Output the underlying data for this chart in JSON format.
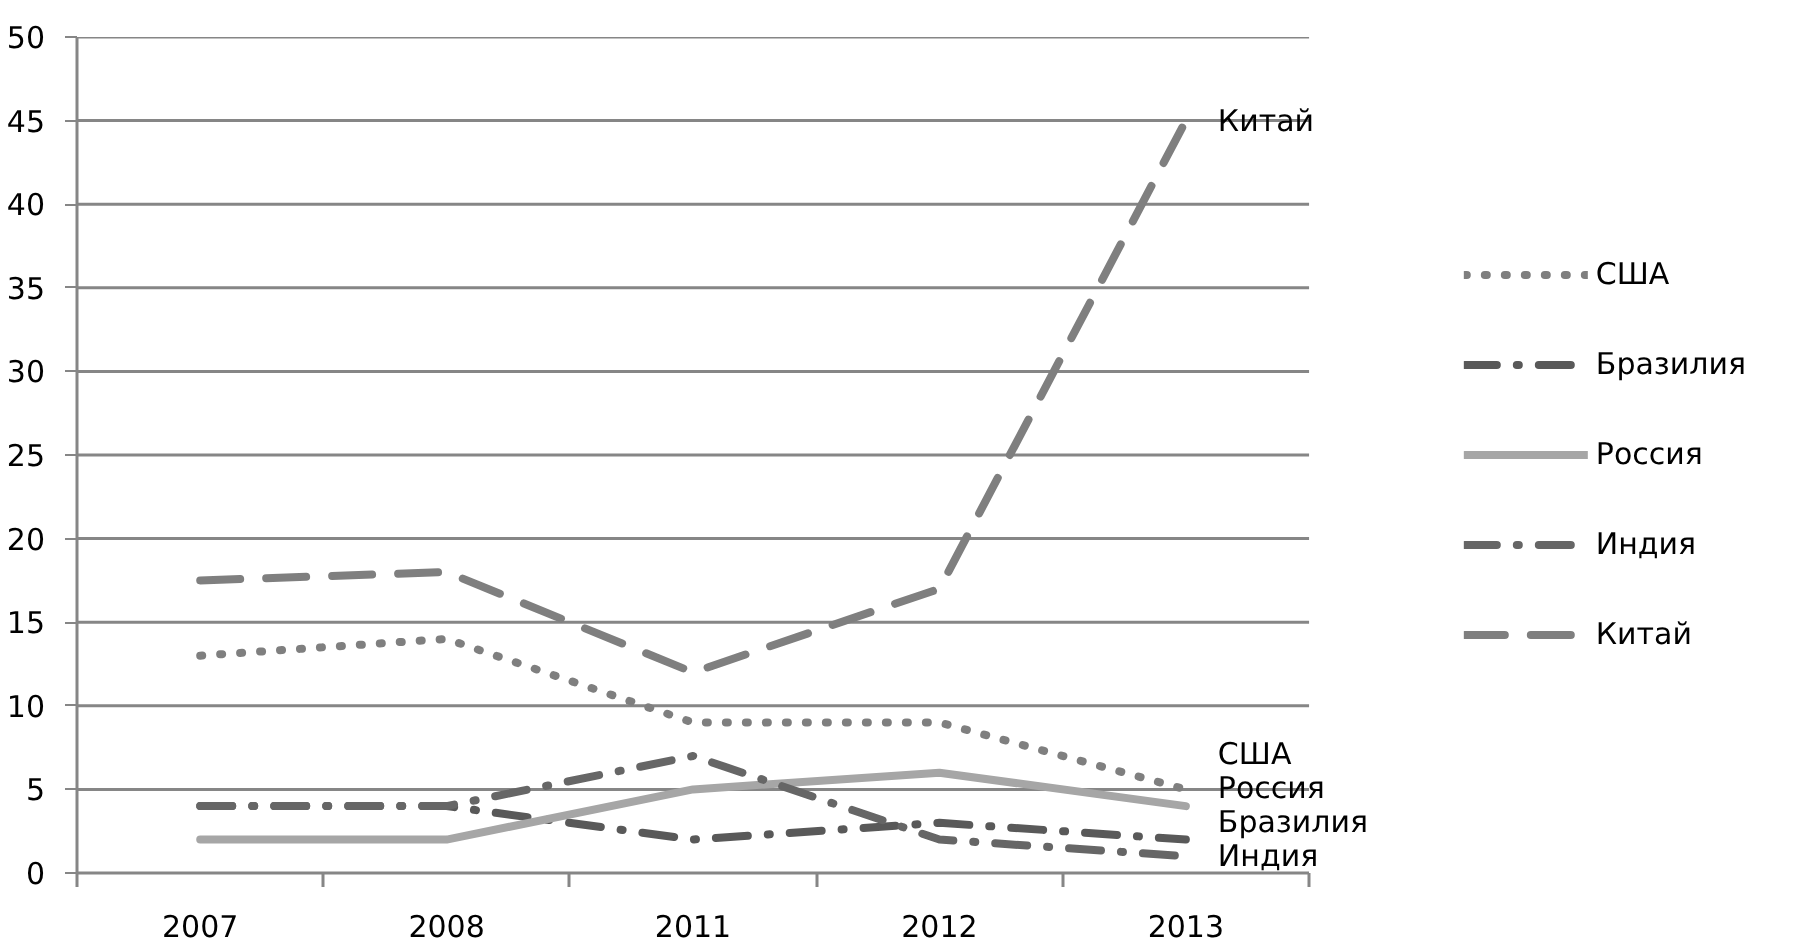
{
  "chart_data": {
    "type": "line",
    "categories": [
      "2007",
      "2008",
      "2011",
      "2012",
      "2013"
    ],
    "ylim": [
      0,
      50
    ],
    "yticks": [
      0,
      5,
      10,
      15,
      20,
      25,
      30,
      35,
      40,
      45,
      50
    ],
    "grid": "y",
    "legend": "right",
    "series": [
      {
        "name": "США",
        "color": "#7f7f7f",
        "line_style": "dotted",
        "values": [
          13,
          14,
          9,
          9,
          5
        ]
      },
      {
        "name": "Бразилия",
        "color": "#595959",
        "line_style": "dashdot",
        "values": [
          4,
          4,
          2,
          3,
          2
        ]
      },
      {
        "name": "Россия",
        "color": "#a6a6a6",
        "line_style": "solid",
        "values": [
          2,
          2,
          5,
          6,
          4
        ]
      },
      {
        "name": "Индия",
        "color": "#666666",
        "line_style": "dashdot",
        "values": [
          4,
          4,
          7,
          2,
          1
        ]
      },
      {
        "name": "Китай",
        "color": "#7f7f7f",
        "line_style": "dashed",
        "values": [
          17.5,
          18,
          12,
          17,
          45
        ]
      }
    ],
    "annotations": [
      {
        "text": "Китай",
        "x": "2013",
        "y": 45
      },
      {
        "text": "США",
        "x": "2013",
        "y": 5
      },
      {
        "text": "Россия",
        "x": "2013",
        "y": 4
      },
      {
        "text": "Бразилия",
        "x": "2013",
        "y": 2
      },
      {
        "text": "Индия",
        "x": "2013",
        "y": 1
      }
    ]
  }
}
